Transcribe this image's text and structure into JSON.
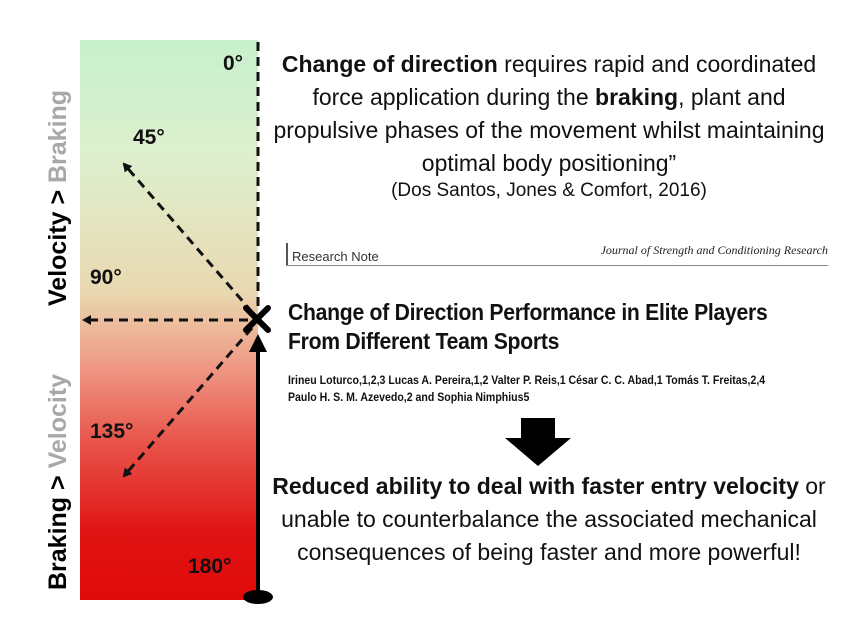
{
  "left_labels": {
    "top": {
      "part1": "Velocity",
      "sep": " > ",
      "part2": "Braking"
    },
    "bottom": {
      "part1": "Braking",
      "sep": " > ",
      "part2": "Velocity"
    }
  },
  "angles": {
    "a0": "0°",
    "a45": "45°",
    "a90": "90°",
    "a135": "135°",
    "a180": "180°"
  },
  "quote": {
    "b1": "Change of direction",
    "t1": " requires rapid and coordinated force application during the ",
    "b2": "braking",
    "t2": ", plant and propulsive phases of the movement whilst maintaining optimal body positioning”",
    "citation": "(Dos Santos, Jones & Comfort, 2016)"
  },
  "paper": {
    "note": "Research Note",
    "journal": "Journal of Strength and Conditioning Research",
    "title": "Change of Direction Performance in Elite Players From Different Team Sports",
    "authors_line1": "Irineu Loturco,1,2,3 Lucas A. Pereira,1,2 Valter P. Reis,1 César C. C. Abad,1 Tomás T. Freitas,2,4",
    "authors_line2": "Paulo H. S. M. Azevedo,2 and Sophia Nimphius5"
  },
  "result": {
    "b1": "Reduced ability to deal with faster entry velocity",
    "t1": " or unable to counterbalance the associated mechanical consequences of being faster and more powerful!"
  },
  "colors": {
    "top": "#c7f0cc",
    "bottom": "#e00a0a",
    "muted_text": "#a8a8a8"
  }
}
